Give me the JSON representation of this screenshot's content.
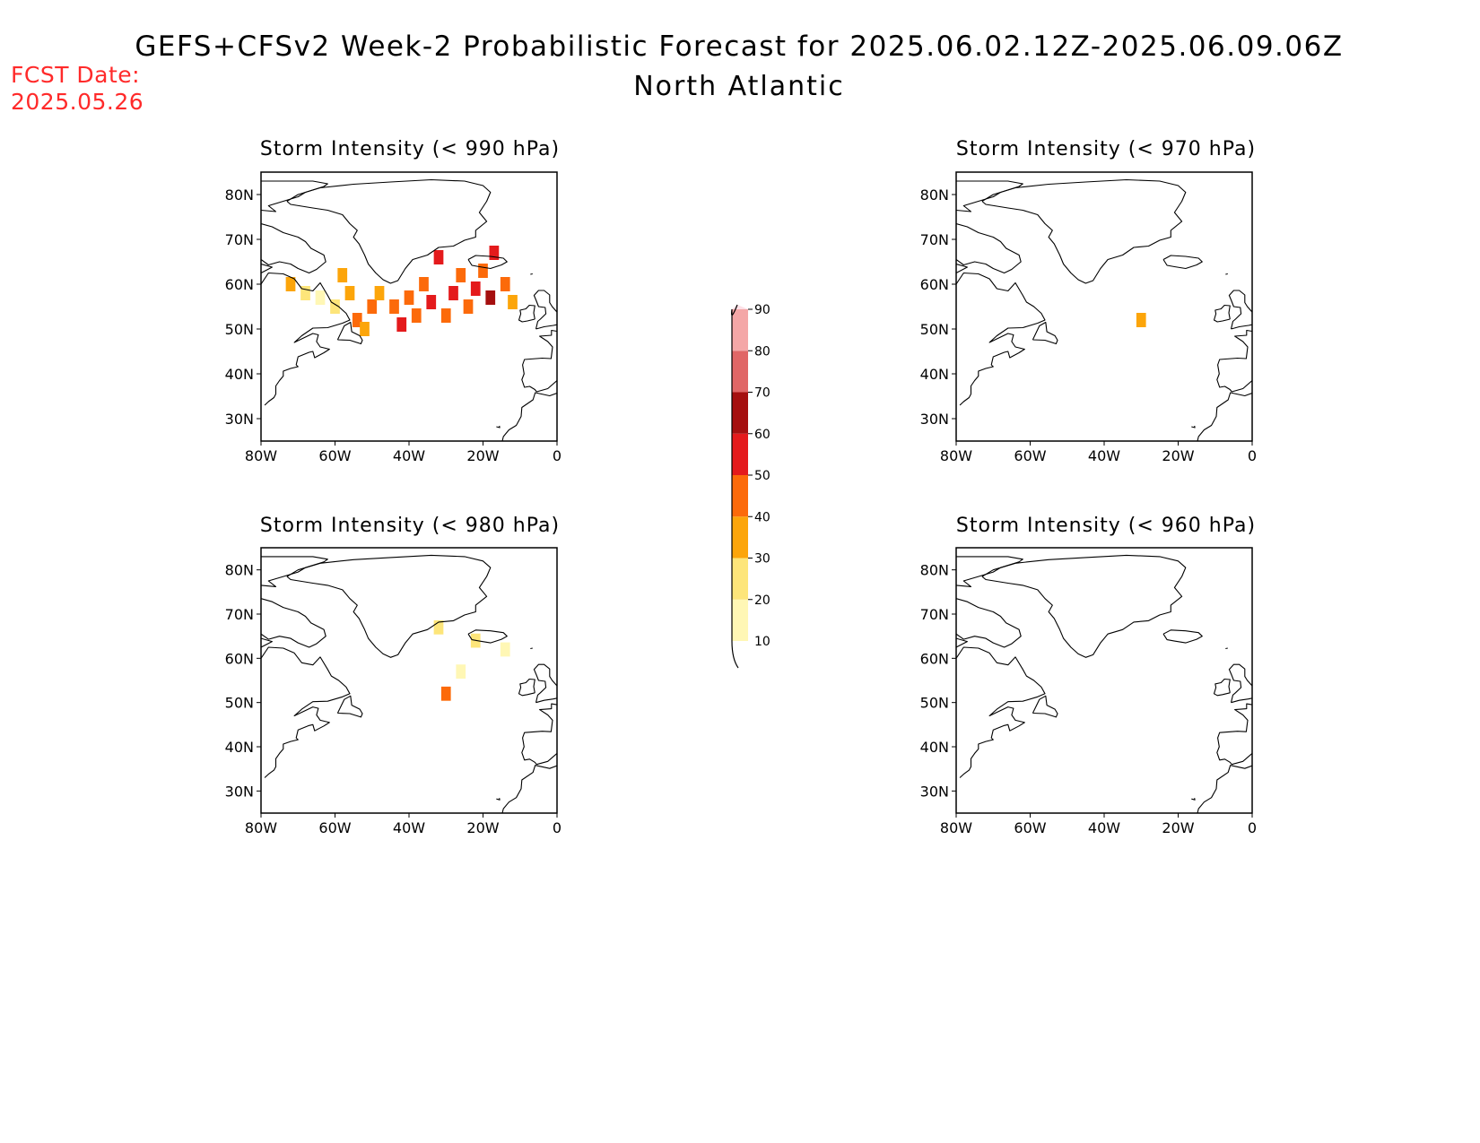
{
  "header": {
    "title": "GEFS+CFSv2 Week-2 Probabilistic Forecast for 2025.06.02.12Z-2025.06.09.06Z",
    "subtitle": "North Atlantic",
    "fcst_label": "FCST Date:",
    "fcst_date": "2025.05.26",
    "fcst_color": "#ff2a2a"
  },
  "axes": {
    "lon_labels": [
      "80W",
      "60W",
      "40W",
      "20W",
      "0"
    ],
    "lat_labels": [
      "80N",
      "70N",
      "60N",
      "50N",
      "40N",
      "30N"
    ],
    "lon_range": [
      -80,
      0
    ],
    "lat_range": [
      25,
      85
    ]
  },
  "panels": [
    {
      "id": "p990",
      "title": "Storm Intensity (< 990 hPa)"
    },
    {
      "id": "p970",
      "title": "Storm Intensity (< 970 hPa)"
    },
    {
      "id": "p980",
      "title": "Storm Intensity (< 980 hPa)"
    },
    {
      "id": "p960",
      "title": "Storm Intensity (< 960 hPa)"
    }
  ],
  "colorbar": {
    "levels": [
      "10",
      "20",
      "30",
      "40",
      "50",
      "60",
      "70",
      "80",
      "90"
    ],
    "colors": [
      "#fff7b5",
      "#fde57a",
      "#fca50a",
      "#fc6a0a",
      "#e41a1c",
      "#a50f0f",
      "#e06666",
      "#f4a7a7",
      "#fde0e6"
    ]
  },
  "chart_data": {
    "type": "heatmap",
    "units": "probability (%)",
    "fields": [
      {
        "panel": "Storm Intensity (< 990 hPa)",
        "cells": [
          {
            "lon": -72,
            "lat": 60,
            "value": 30
          },
          {
            "lon": -68,
            "lat": 58,
            "value": 20
          },
          {
            "lon": -64,
            "lat": 57,
            "value": 10
          },
          {
            "lon": -60,
            "lat": 55,
            "value": 20
          },
          {
            "lon": -58,
            "lat": 62,
            "value": 30
          },
          {
            "lon": -56,
            "lat": 58,
            "value": 30
          },
          {
            "lon": -54,
            "lat": 52,
            "value": 40
          },
          {
            "lon": -52,
            "lat": 50,
            "value": 30
          },
          {
            "lon": -50,
            "lat": 55,
            "value": 40
          },
          {
            "lon": -48,
            "lat": 58,
            "value": 30
          },
          {
            "lon": -44,
            "lat": 55,
            "value": 40
          },
          {
            "lon": -42,
            "lat": 51,
            "value": 50
          },
          {
            "lon": -40,
            "lat": 57,
            "value": 40
          },
          {
            "lon": -38,
            "lat": 53,
            "value": 40
          },
          {
            "lon": -36,
            "lat": 60,
            "value": 40
          },
          {
            "lon": -34,
            "lat": 56,
            "value": 50
          },
          {
            "lon": -32,
            "lat": 66,
            "value": 50
          },
          {
            "lon": -30,
            "lat": 53,
            "value": 40
          },
          {
            "lon": -28,
            "lat": 58,
            "value": 50
          },
          {
            "lon": -26,
            "lat": 62,
            "value": 40
          },
          {
            "lon": -24,
            "lat": 55,
            "value": 40
          },
          {
            "lon": -22,
            "lat": 59,
            "value": 50
          },
          {
            "lon": -20,
            "lat": 63,
            "value": 40
          },
          {
            "lon": -18,
            "lat": 57,
            "value": 60
          },
          {
            "lon": -17,
            "lat": 67,
            "value": 50
          },
          {
            "lon": -14,
            "lat": 60,
            "value": 40
          },
          {
            "lon": -12,
            "lat": 56,
            "value": 30
          }
        ]
      },
      {
        "panel": "Storm Intensity (< 970 hPa)",
        "cells": [
          {
            "lon": -30,
            "lat": 52,
            "value": 30
          }
        ]
      },
      {
        "panel": "Storm Intensity (< 980 hPa)",
        "cells": [
          {
            "lon": -32,
            "lat": 67,
            "value": 20
          },
          {
            "lon": -26,
            "lat": 57,
            "value": 10
          },
          {
            "lon": -30,
            "lat": 52,
            "value": 40
          },
          {
            "lon": -22,
            "lat": 64,
            "value": 20
          },
          {
            "lon": -14,
            "lat": 62,
            "value": 10
          }
        ]
      },
      {
        "panel": "Storm Intensity (< 960 hPa)",
        "cells": []
      }
    ]
  }
}
